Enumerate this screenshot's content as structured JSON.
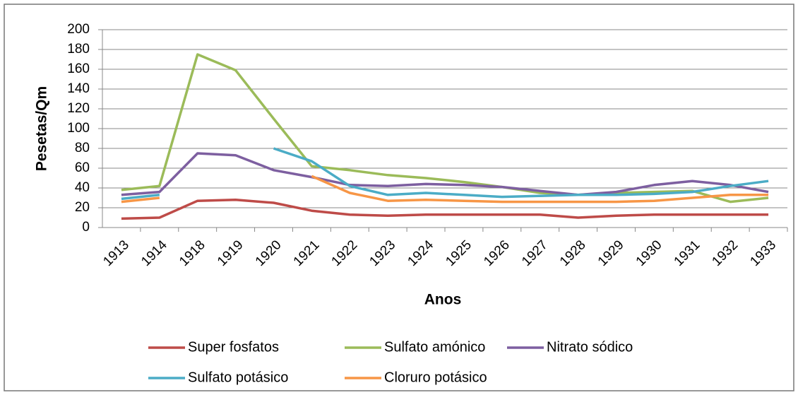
{
  "chart_data": {
    "type": "line",
    "x_label": "Anos",
    "y_label": "Pesetas/Qm",
    "categories": [
      "1913",
      "1914",
      "1918",
      "1919",
      "1920",
      "1921",
      "1922",
      "1923",
      "1924",
      "1925",
      "1926",
      "1927",
      "1928",
      "1929",
      "1930",
      "1931",
      "1932",
      "1933"
    ],
    "ylim": [
      0,
      200
    ],
    "yticks": [
      0,
      20,
      40,
      60,
      80,
      100,
      120,
      140,
      160,
      180,
      200
    ],
    "grid": true,
    "legend": "bottom",
    "series": [
      {
        "name": "Super fosfatos",
        "color": "#be4b48",
        "values": [
          9,
          10,
          27,
          28,
          25,
          17,
          13,
          12,
          13,
          13,
          13,
          13,
          10,
          12,
          13,
          13,
          13,
          13
        ]
      },
      {
        "name": "Sulfato amónico",
        "color": "#9bbb59",
        "values": [
          38,
          42,
          175,
          159,
          110,
          62,
          58,
          53,
          50,
          46,
          41,
          35,
          33,
          35,
          36,
          37,
          26,
          30
        ]
      },
      {
        "name": "Nitrato sódico",
        "color": "#7d5fa0",
        "values": [
          33,
          36,
          75,
          73,
          58,
          51,
          43,
          42,
          44,
          43,
          41,
          37,
          33,
          36,
          43,
          47,
          43,
          36
        ]
      },
      {
        "name": "Sulfato potásico",
        "color": "#4bacc6",
        "values": [
          29,
          33,
          null,
          null,
          80,
          67,
          42,
          33,
          35,
          33,
          31,
          32,
          33,
          33,
          34,
          36,
          42,
          47
        ]
      },
      {
        "name": "Cloruro potásico",
        "color": "#f79646",
        "values": [
          26,
          30,
          null,
          null,
          null,
          52,
          35,
          27,
          28,
          27,
          26,
          26,
          26,
          26,
          27,
          30,
          33,
          33
        ]
      }
    ]
  }
}
